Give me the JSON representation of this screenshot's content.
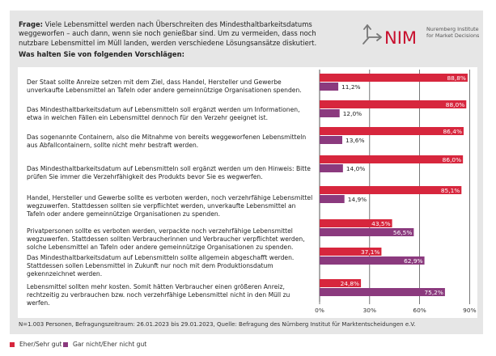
{
  "header": {
    "question_label": "Frage:",
    "question_text": "Viele Lebensmittel werden nach Überschreiten des Mindesthaltbarkeitsdatums weggeworfen – auch dann, wenn sie noch genießbar sind. Um zu vermeiden, dass noch nutzbare Lebensmittel im Müll landen, werden verschiedene Lösungsansätze diskutiert.",
    "subquestion": "Was halten Sie von folgenden Vorschlägen:"
  },
  "logo": {
    "mark": "NIM",
    "line1": "Nuremberg Institute",
    "line2": "for Market Decisions",
    "icon": "split-arrows-icon"
  },
  "colors": {
    "positive": "#d7263d",
    "negative": "#8b3a7e",
    "panel_bg": "#e6e6e6"
  },
  "footnote": "N=1.003 Personen, Befragungszeitraum: 26.01.2023 bis 29.01.2023, Quelle: Befragung des Nürnberg Institut für Marktentscheidungen e.V.",
  "chart_data": {
    "type": "bar",
    "orientation": "horizontal",
    "title": "Was halten Sie von folgenden Vorschlägen:",
    "xlabel": "",
    "ylabel": "",
    "xlim": [
      0,
      90
    ],
    "xticks": [
      0,
      30,
      60,
      90
    ],
    "xtick_labels": [
      "0%",
      "30%",
      "60%",
      "90%"
    ],
    "grid": true,
    "legend_position": "bottom-left",
    "categories": [
      "Der Staat sollte Anreize setzen mit dem Ziel, dass Handel, Hersteller und Gewerbe unverkaufte Lebensmittel an Tafeln oder andere gemeinnützige Organisationen spenden.",
      "Das Mindesthaltbarkeitsdatum auf Lebensmitteln soll ergänzt werden um Informationen, etwa in welchen Fällen ein Lebensmittel dennoch für den Verzehr geeignet ist.",
      "Das sogenannte Containern, also die Mitnahme von bereits weggeworfenen Lebensmitteln aus Abfallcontainern, sollte nicht mehr bestraft werden.",
      "Das Mindesthaltbarkeitsdatum auf Lebensmitteln soll ergänzt werden um den Hinweis: Bitte prüfen Sie immer die Verzehrfähigkeit des Produkts bevor Sie es wegwerfen.",
      "Handel, Hersteller und Gewerbe sollte es verboten werden, noch verzehrfähige Lebensmittel wegzuwerfen. Stattdessen sollten sie verpflichtet werden, unverkaufte Lebensmittel an Tafeln oder andere gemeinnützige Organisationen zu spenden.",
      "Privatpersonen sollte es verboten werden, verpackte noch verzehrfähige Lebensmittel wegzuwerfen. Stattdessen sollten Verbraucherinnen und Verbraucher verpflichtet werden, solche Lebensmittel an Tafeln oder andere gemeinnützige Organisationen zu spenden.",
      "Das Mindesthaltbarkeitsdatum auf Lebensmitteln sollte allgemein abgeschafft werden. Stattdessen sollen Lebensmittel in Zukunft nur noch mit dem Produktionsdatum gekennzeichnet werden.",
      "Lebensmittel sollten mehr kosten. Somit hätten Verbraucher einen größeren Anreiz, rechtzeitig zu verbrauchen bzw. noch verzehrfähige Lebensmittel nicht in den Müll zu werfen."
    ],
    "series": [
      {
        "name": "Eher/Sehr gut",
        "color": "#d7263d",
        "values": [
          88.8,
          88.0,
          86.4,
          86.0,
          85.1,
          43.5,
          37.1,
          24.8
        ],
        "labels": [
          "88,8%",
          "88,0%",
          "86,4%",
          "86,0%",
          "85,1%",
          "43,5%",
          "37,1%",
          "24,8%"
        ]
      },
      {
        "name": "Gar nicht/Eher nicht gut",
        "color": "#8b3a7e",
        "values": [
          11.2,
          12.0,
          13.6,
          14.0,
          14.9,
          56.5,
          62.9,
          75.2
        ],
        "labels": [
          "11,2%",
          "12,0%",
          "13,6%",
          "14,0%",
          "14,9%",
          "56,5%",
          "62,9%",
          "75,2%"
        ]
      }
    ]
  }
}
